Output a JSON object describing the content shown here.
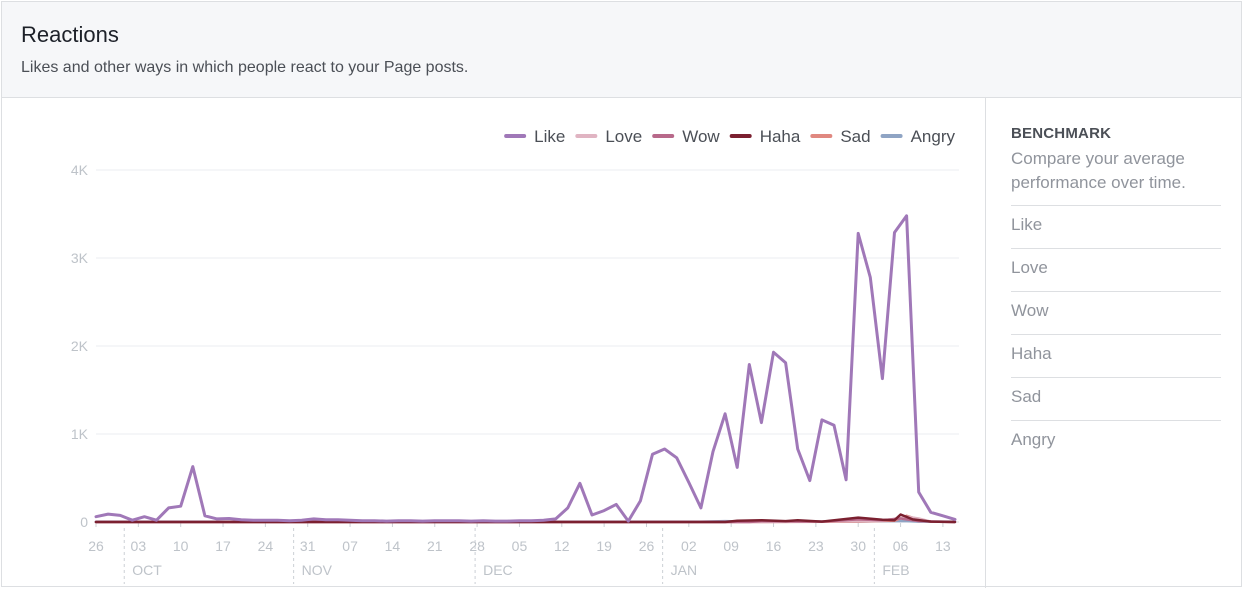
{
  "header": {
    "title": "Reactions",
    "subtitle": "Likes and other ways in which people react to your Page posts."
  },
  "benchmark": {
    "title": "BENCHMARK",
    "description": "Compare your average performance over time.",
    "items": [
      "Like",
      "Love",
      "Wow",
      "Haha",
      "Sad",
      "Angry"
    ]
  },
  "colors": {
    "Like": "#a078b8",
    "Love": "#e0b4c2",
    "Wow": "#b8698a",
    "Haha": "#7b2030",
    "Sad": "#e08880",
    "Angry": "#8fa4c4",
    "gridline": "#ebedf0",
    "axis_text": "#bec3c9"
  },
  "chart_data": {
    "type": "line",
    "legend_position": "top-right",
    "grid": true,
    "ylim": [
      0,
      4000
    ],
    "y_ticks": [
      "0",
      "1K",
      "2K",
      "3K",
      "4K"
    ],
    "y_tick_values": [
      0,
      1000,
      2000,
      3000,
      4000
    ],
    "x_ticks": [
      "26",
      "03",
      "10",
      "17",
      "24",
      "31",
      "07",
      "14",
      "21",
      "28",
      "05",
      "12",
      "19",
      "26",
      "02",
      "09",
      "16",
      "23",
      "30",
      "06",
      "13"
    ],
    "x_tick_index": [
      0,
      7,
      14,
      21,
      28,
      35,
      42,
      49,
      56,
      63,
      70,
      77,
      84,
      91,
      98,
      105,
      112,
      119,
      126,
      133,
      140
    ],
    "month_labels": [
      "OCT",
      "NOV",
      "DEC",
      "JAN",
      "FEB"
    ],
    "month_start_index": [
      5,
      33,
      63,
      94,
      129
    ],
    "x_count": 143,
    "series": [
      {
        "name": "Like",
        "points": [
          [
            0,
            60
          ],
          [
            2,
            90
          ],
          [
            4,
            75
          ],
          [
            6,
            20
          ],
          [
            8,
            60
          ],
          [
            10,
            20
          ],
          [
            12,
            160
          ],
          [
            14,
            180
          ],
          [
            16,
            630
          ],
          [
            18,
            70
          ],
          [
            20,
            35
          ],
          [
            22,
            40
          ],
          [
            24,
            25
          ],
          [
            26,
            20
          ],
          [
            28,
            20
          ],
          [
            30,
            20
          ],
          [
            32,
            15
          ],
          [
            34,
            20
          ],
          [
            36,
            35
          ],
          [
            38,
            25
          ],
          [
            40,
            25
          ],
          [
            42,
            20
          ],
          [
            44,
            15
          ],
          [
            46,
            15
          ],
          [
            48,
            10
          ],
          [
            50,
            15
          ],
          [
            52,
            15
          ],
          [
            54,
            10
          ],
          [
            56,
            15
          ],
          [
            58,
            15
          ],
          [
            60,
            15
          ],
          [
            62,
            10
          ],
          [
            64,
            15
          ],
          [
            66,
            10
          ],
          [
            68,
            10
          ],
          [
            70,
            15
          ],
          [
            72,
            15
          ],
          [
            74,
            20
          ],
          [
            76,
            35
          ],
          [
            78,
            160
          ],
          [
            80,
            440
          ],
          [
            82,
            80
          ],
          [
            84,
            130
          ],
          [
            86,
            200
          ],
          [
            88,
            10
          ],
          [
            90,
            240
          ],
          [
            92,
            770
          ],
          [
            94,
            830
          ],
          [
            96,
            730
          ],
          [
            98,
            450
          ],
          [
            100,
            160
          ],
          [
            102,
            800
          ],
          [
            104,
            1230
          ],
          [
            106,
            620
          ],
          [
            108,
            1790
          ],
          [
            110,
            1130
          ],
          [
            112,
            1930
          ],
          [
            114,
            1810
          ],
          [
            116,
            830
          ],
          [
            118,
            470
          ],
          [
            120,
            1160
          ],
          [
            122,
            1100
          ],
          [
            124,
            480
          ],
          [
            126,
            3280
          ],
          [
            128,
            2780
          ],
          [
            130,
            1630
          ],
          [
            132,
            3290
          ],
          [
            134,
            3480
          ],
          [
            136,
            340
          ],
          [
            138,
            110
          ],
          [
            140,
            70
          ],
          [
            142,
            30
          ]
        ]
      },
      {
        "name": "Love",
        "points": [
          [
            0,
            0
          ],
          [
            110,
            0
          ],
          [
            126,
            10
          ],
          [
            130,
            15
          ],
          [
            134,
            60
          ],
          [
            136,
            40
          ],
          [
            138,
            5
          ],
          [
            142,
            0
          ]
        ]
      },
      {
        "name": "Wow",
        "points": [
          [
            0,
            0
          ],
          [
            108,
            0
          ],
          [
            110,
            10
          ],
          [
            120,
            5
          ],
          [
            126,
            30
          ],
          [
            130,
            20
          ],
          [
            133,
            40
          ],
          [
            136,
            10
          ],
          [
            142,
            0
          ]
        ]
      },
      {
        "name": "Haha",
        "points": [
          [
            0,
            0
          ],
          [
            104,
            0
          ],
          [
            106,
            15
          ],
          [
            110,
            20
          ],
          [
            114,
            10
          ],
          [
            116,
            20
          ],
          [
            120,
            5
          ],
          [
            126,
            50
          ],
          [
            130,
            25
          ],
          [
            132,
            20
          ],
          [
            133,
            85
          ],
          [
            135,
            30
          ],
          [
            138,
            5
          ],
          [
            142,
            0
          ]
        ]
      },
      {
        "name": "Sad",
        "points": [
          [
            0,
            0
          ],
          [
            110,
            0
          ],
          [
            126,
            5
          ],
          [
            132,
            15
          ],
          [
            134,
            70
          ],
          [
            136,
            30
          ],
          [
            138,
            5
          ],
          [
            142,
            0
          ]
        ]
      },
      {
        "name": "Angry",
        "points": [
          [
            0,
            5
          ],
          [
            20,
            5
          ],
          [
            40,
            5
          ],
          [
            60,
            5
          ],
          [
            80,
            5
          ],
          [
            100,
            5
          ],
          [
            104,
            10
          ],
          [
            108,
            5
          ],
          [
            120,
            5
          ],
          [
            126,
            5
          ],
          [
            130,
            10
          ],
          [
            134,
            10
          ],
          [
            136,
            5
          ],
          [
            142,
            5
          ]
        ]
      }
    ]
  }
}
